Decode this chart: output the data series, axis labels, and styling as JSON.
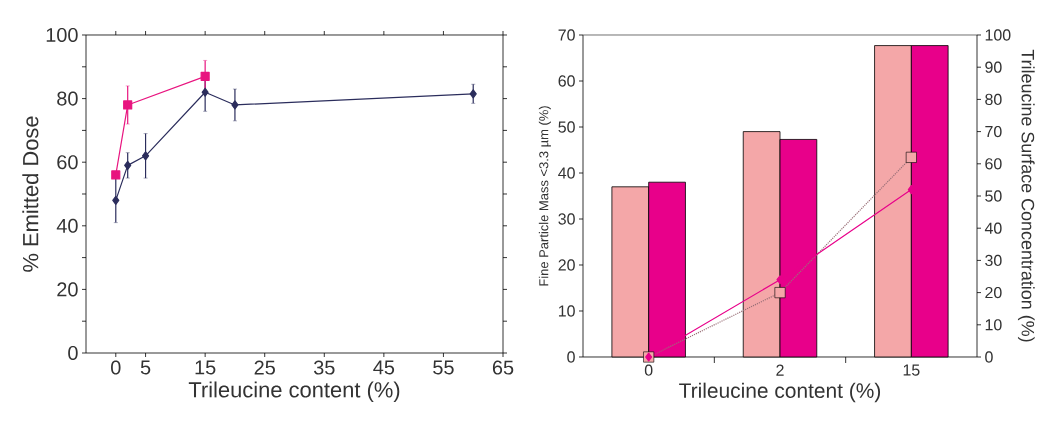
{
  "chart_data": [
    {
      "type": "line",
      "xlabel": "Trileucine content (%)",
      "ylabel": "% Emitted Dose",
      "xlim": [
        -5,
        65
      ],
      "xticks": [
        0,
        5,
        15,
        25,
        35,
        45,
        55,
        65
      ],
      "ylim": [
        0,
        100
      ],
      "yticks": [
        0,
        {
          "value": 10,
          "label": null
        },
        20,
        {
          "value": 30,
          "label": null
        },
        40,
        {
          "value": 50,
          "label": null
        },
        60,
        {
          "value": 70,
          "label": null
        },
        80,
        {
          "value": 90,
          "label": null
        },
        100
      ],
      "series": [
        {
          "color": "#2b2d5c",
          "marker": "diamond",
          "x": [
            0,
            2,
            5,
            15,
            20,
            60
          ],
          "values": [
            48,
            59,
            62,
            82,
            78,
            81.5
          ],
          "errors": [
            7,
            4,
            7,
            6,
            5,
            3
          ]
        },
        {
          "color": "#e8147f",
          "marker": "square",
          "x": [
            0,
            2,
            15
          ],
          "values": [
            56,
            78,
            87
          ],
          "errors": [
            null,
            6,
            5
          ]
        }
      ]
    },
    {
      "type": "bar",
      "xlabel": "Trileucine content (%)",
      "ylabel": "Fine Particle Mass <3.3 µm (%)",
      "y2label": "Trileucine Surface Concentration (%)",
      "categories": [
        "0",
        "2",
        "15"
      ],
      "ylim": [
        0,
        70
      ],
      "yticks": [
        0,
        10,
        20,
        30,
        40,
        50,
        60,
        70
      ],
      "y2lim": [
        0,
        100
      ],
      "y2ticks": [
        0,
        10,
        20,
        30,
        40,
        50,
        60,
        70,
        80,
        90,
        100
      ],
      "series": [
        {
          "type": "bar",
          "color": "#f4a7a8",
          "values": [
            37,
            49,
            67.7
          ]
        },
        {
          "type": "bar",
          "color": "#e8008a",
          "values": [
            38,
            47.3,
            67.7
          ]
        },
        {
          "type": "line",
          "axis": "y2",
          "color": "#9a7078",
          "marker": "square",
          "line_style": "dotted",
          "values": [
            0,
            20,
            62
          ]
        },
        {
          "type": "line",
          "axis": "y2",
          "color": "#e8008a",
          "marker": "diamond",
          "line_style": "solid",
          "values": [
            0,
            24,
            52
          ]
        }
      ]
    }
  ]
}
